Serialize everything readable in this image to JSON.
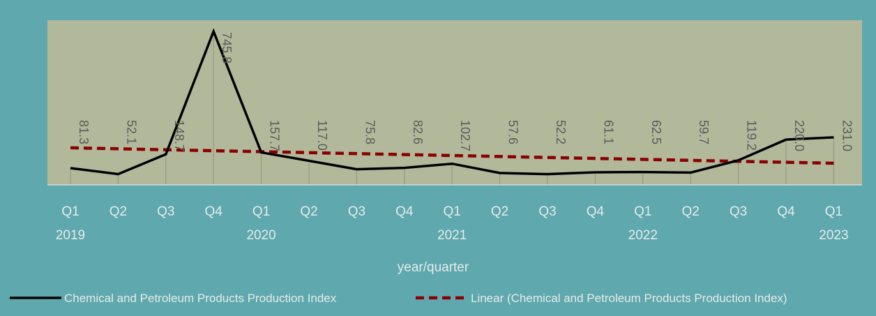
{
  "chart_data": {
    "type": "line",
    "xlabel": "year/quarter",
    "ylabel": "",
    "ylim": [
      0,
      760
    ],
    "categories": [
      {
        "q": "Q1",
        "year": "2019"
      },
      {
        "q": "Q2",
        "year": ""
      },
      {
        "q": "Q3",
        "year": ""
      },
      {
        "q": "Q4",
        "year": ""
      },
      {
        "q": "Q1",
        "year": "2020"
      },
      {
        "q": "Q2",
        "year": ""
      },
      {
        "q": "Q3",
        "year": ""
      },
      {
        "q": "Q4",
        "year": ""
      },
      {
        "q": "Q1",
        "year": "2021"
      },
      {
        "q": "Q2",
        "year": ""
      },
      {
        "q": "Q3",
        "year": ""
      },
      {
        "q": "Q4",
        "year": ""
      },
      {
        "q": "Q1",
        "year": "2022"
      },
      {
        "q": "Q2",
        "year": ""
      },
      {
        "q": "Q3",
        "year": ""
      },
      {
        "q": "Q4",
        "year": ""
      },
      {
        "q": "Q1",
        "year": "2023"
      }
    ],
    "series": [
      {
        "name": "Chemical and Petroleum Products Production Index",
        "color": "#000000",
        "values": [
          81.3,
          52.1,
          148.7,
          745.8,
          157.7,
          117.0,
          75.8,
          82.6,
          102.7,
          57.6,
          52.2,
          61.1,
          62.5,
          59.7,
          119.2,
          220.0,
          231.0
        ],
        "labels": [
          "81.3",
          "52.1",
          "148.7",
          "745.8",
          "157.7",
          "117.0",
          "75.8",
          "82.6",
          "102.7",
          "57.6",
          "52.2",
          "61.1",
          "62.5",
          "59.7",
          "119.2",
          "220.0",
          "231.0"
        ]
      }
    ],
    "trendline": {
      "name": "Linear (Chemical and Petroleum Products Production Index)",
      "color": "#8b0000",
      "style": "dashed",
      "start": 180,
      "end": 105
    },
    "grid": false,
    "legend": "bottom",
    "colors": {
      "background": "#5fa8ae",
      "plot_area": "#b2b99b",
      "tick_text": "#e4ecea",
      "data_label": "#5a5a5a"
    }
  }
}
